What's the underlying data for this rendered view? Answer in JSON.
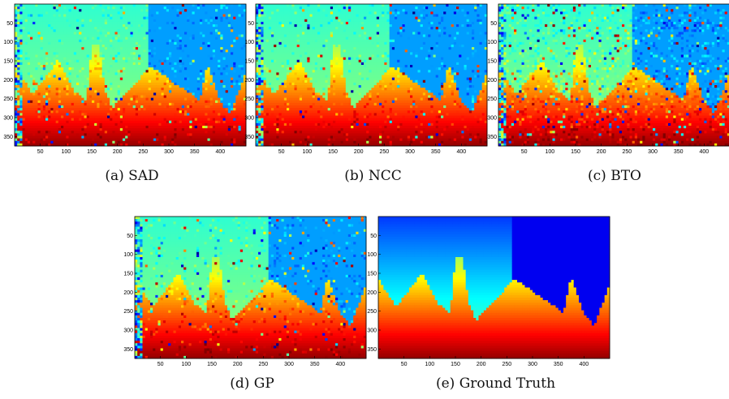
{
  "figure": {
    "colormap": "jet",
    "x_ticks": [
      "50",
      "100",
      "150",
      "200",
      "250",
      "300",
      "350",
      "400"
    ],
    "y_ticks": [
      "50",
      "100",
      "150",
      "200",
      "250",
      "300",
      "350"
    ],
    "panels": [
      {
        "id": "sad",
        "caption": "(a) SAD",
        "kind": "noisy"
      },
      {
        "id": "ncc",
        "caption": "(b) NCC",
        "kind": "noisy"
      },
      {
        "id": "bto",
        "caption": "(c) BTO",
        "kind": "very-noisy"
      },
      {
        "id": "gp",
        "caption": "(d) GP",
        "kind": "noisy"
      },
      {
        "id": "gt",
        "caption": "(e) Ground Truth",
        "kind": "clean"
      }
    ]
  }
}
